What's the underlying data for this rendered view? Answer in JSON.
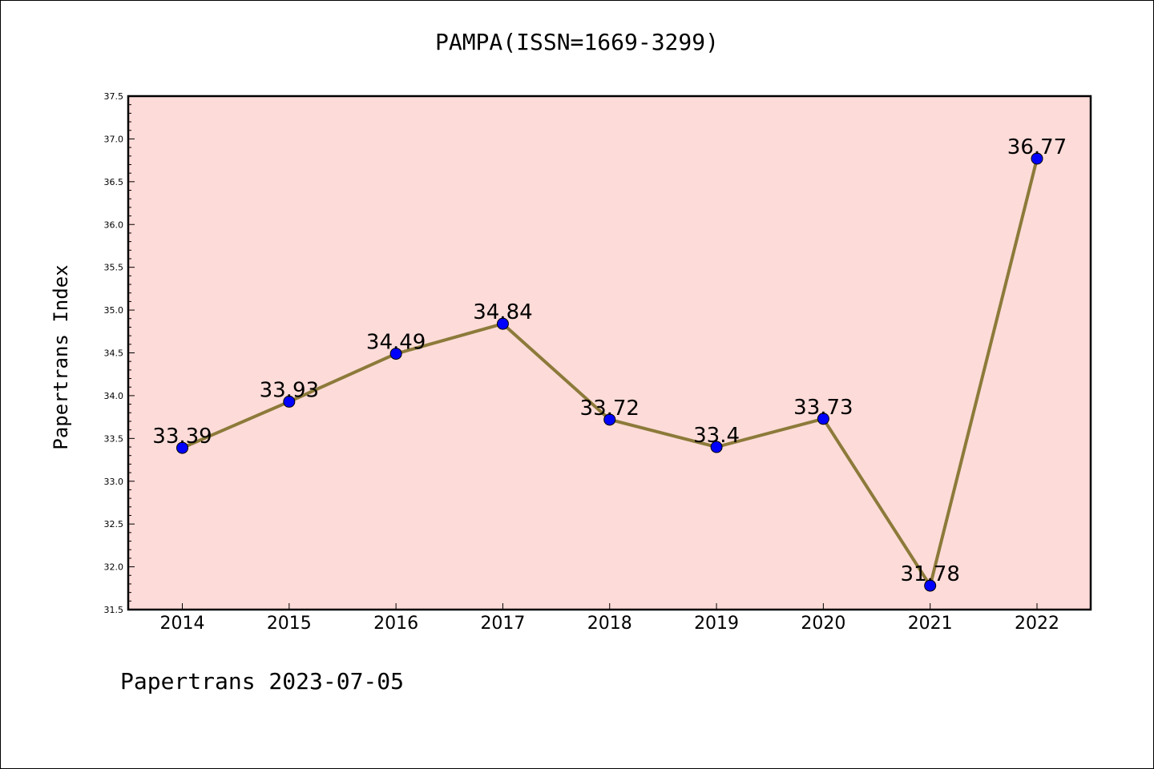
{
  "chart_data": {
    "type": "line",
    "title": "PAMPA(ISSN=1669-3299)",
    "xlabel": "",
    "ylabel": "Papertrans Index",
    "categories": [
      "2014",
      "2015",
      "2016",
      "2017",
      "2018",
      "2019",
      "2020",
      "2021",
      "2022"
    ],
    "series": [
      {
        "values": [
          33.39,
          33.93,
          34.49,
          34.84,
          33.72,
          33.4,
          33.73,
          31.78,
          36.77
        ]
      }
    ],
    "data_labels": [
      "33.39",
      "33.93",
      "34.49",
      "34.84",
      "33.72",
      "33.4",
      "33.73",
      "31.78",
      "36.77"
    ],
    "ylim": [
      31.5,
      37.5
    ],
    "yticks": [
      "31.5",
      "32.0",
      "32.5",
      "33.0",
      "33.5",
      "34.0",
      "34.5",
      "35.0",
      "35.5",
      "36.0",
      "36.5",
      "37.0",
      "37.5"
    ],
    "grid": false,
    "colors": {
      "plot_background": "#fddbd8",
      "line": "#8c7a3a",
      "marker": "#0000ff"
    }
  },
  "footer": "Papertrans 2023-07-05"
}
